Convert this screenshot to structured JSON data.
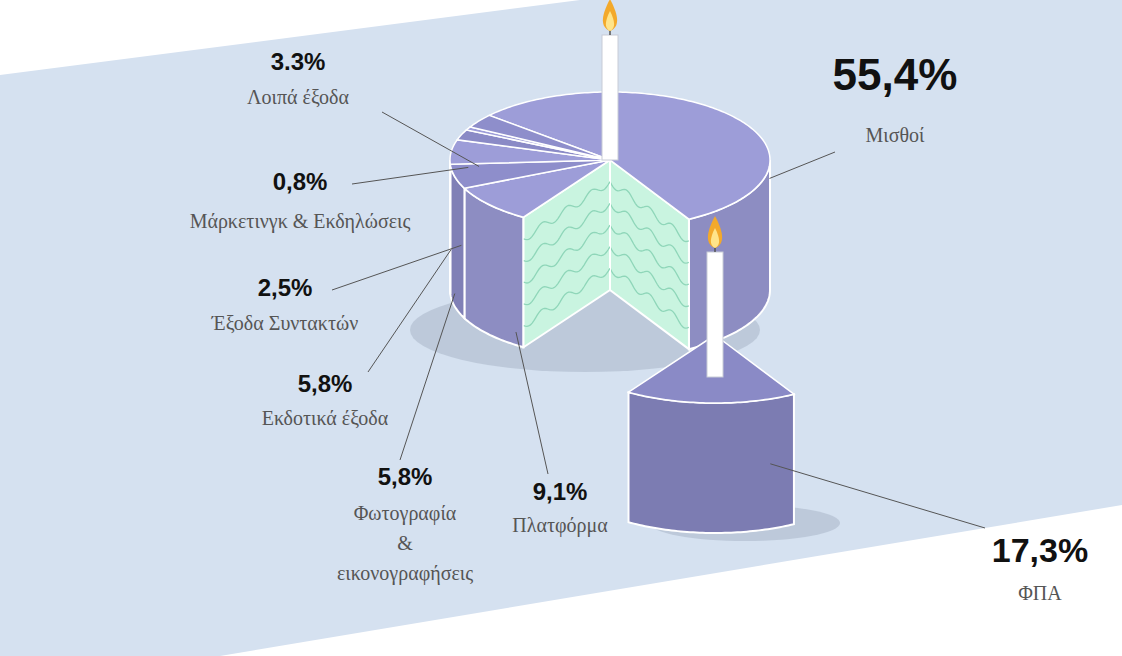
{
  "chart_data": {
    "type": "pie",
    "categories": [
      "Μισθοί",
      "ΦΠΑ",
      "Πλατφόρμα",
      "Φωτογραφία & εικονογραφήσεις",
      "Εκδοτικά έξοδα",
      "Έξοδα Συντακτών",
      "Μάρκετινγκ & Εκδηλώσεις",
      "Λοιπά έξοδα"
    ],
    "values": [
      55.4,
      17.3,
      9.1,
      5.8,
      5.8,
      2.5,
      0.8,
      3.3
    ],
    "value_labels": [
      "55,4%",
      "17,3%",
      "9,1%",
      "5,8%",
      "5,8%",
      "2,5%",
      "0,8%",
      "3.3%"
    ],
    "colors": [
      "#9d9dd8",
      "#8a8ac6",
      "#9d9dd8",
      "#8e8ecb",
      "#9d9dd8",
      "#8a8ac6",
      "#9d9dd8",
      "#8e8ecb"
    ],
    "data_labels": true
  }
}
